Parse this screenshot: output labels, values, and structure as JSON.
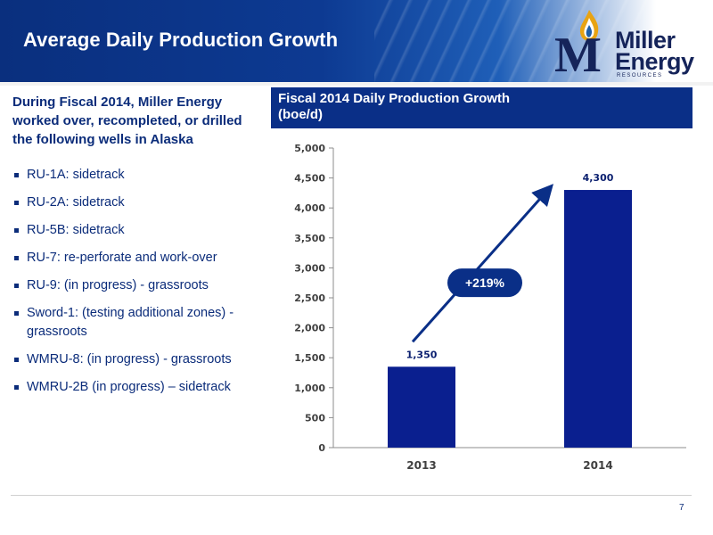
{
  "header": {
    "title": "Average Daily Production Growth"
  },
  "logo": {
    "line1": "Miller",
    "line2": "Energy",
    "tagline": "RESOURCES"
  },
  "intro": "During Fiscal 2014, Miller Energy worked over, recompleted, or drilled the following wells in Alaska",
  "bullets": [
    "RU-1A: sidetrack",
    "RU-2A: sidetrack",
    "RU-5B: sidetrack",
    "RU-7: re-perforate and work-over",
    "RU-9: (in progress) - grassroots",
    "Sword-1: (testing additional zones) - grassroots",
    "WMRU-8: (in progress) - grassroots",
    "WMRU-2B (in progress) – sidetrack"
  ],
  "chart_data": {
    "type": "bar",
    "title": "Fiscal 2014 Daily Production Growth",
    "subtitle": "(boe/d)",
    "categories": [
      "2013",
      "2014"
    ],
    "values": [
      1350,
      4300
    ],
    "value_labels": [
      "1,350",
      "4,300"
    ],
    "ylim": [
      0,
      5000
    ],
    "yticks": [
      "0",
      "500",
      "1,000",
      "1,500",
      "2,000",
      "2,500",
      "3,000",
      "3,500",
      "4,000",
      "4,500",
      "5,000"
    ],
    "annotation": "+219%",
    "grid": false,
    "bar_color": "#0a1f8f"
  },
  "footer": {
    "page_number": "7"
  }
}
